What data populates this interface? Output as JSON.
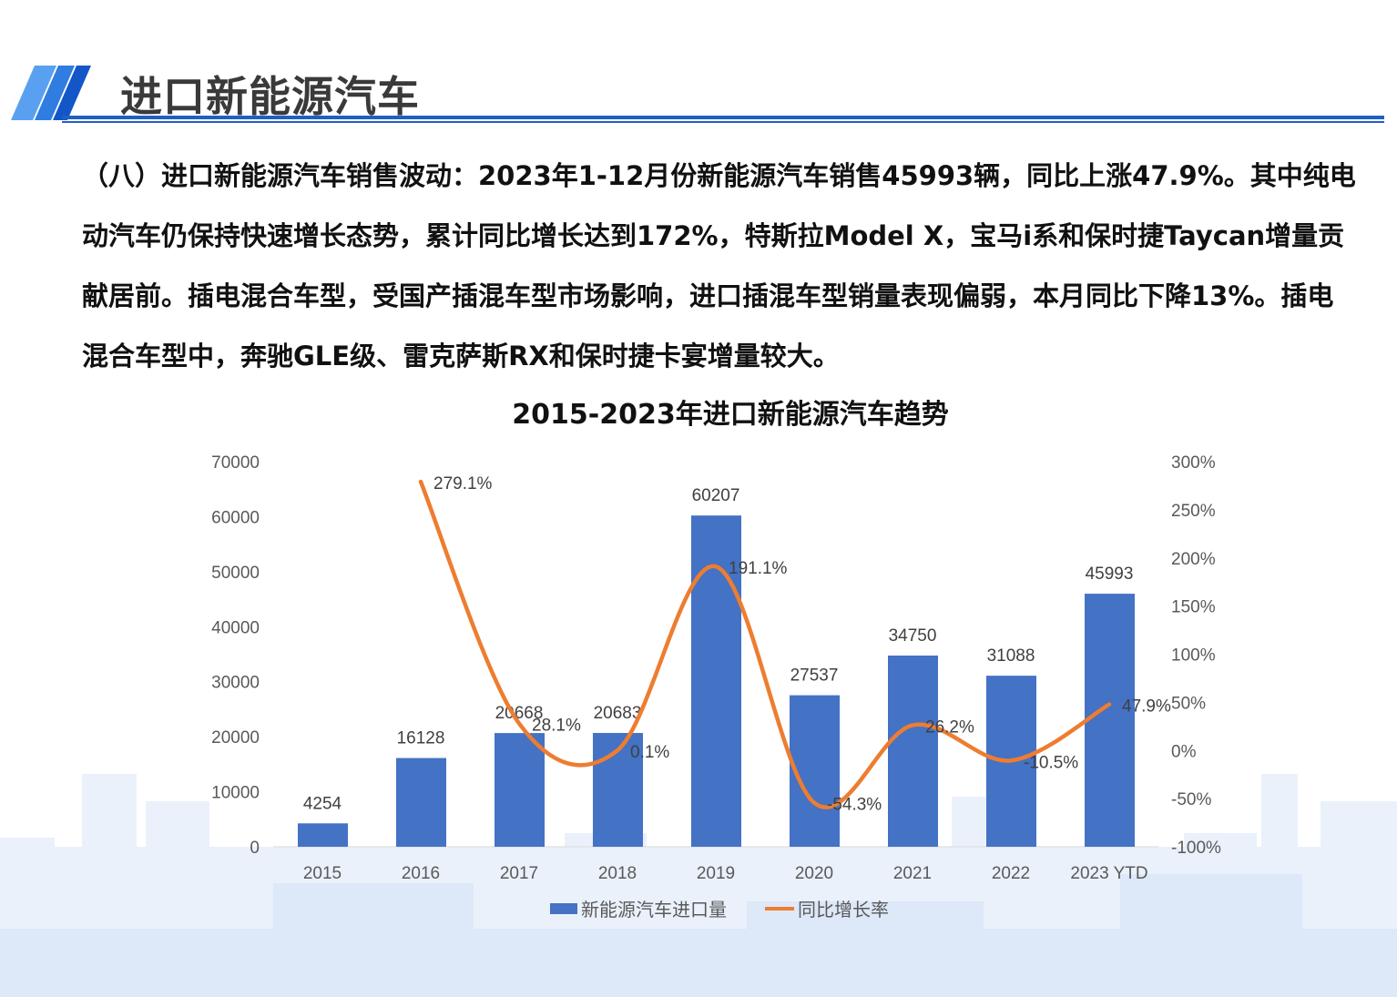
{
  "header": {
    "title": "进口新能源汽车",
    "accent_color": "#1f5fc4"
  },
  "paragraph": "（八）进口新能源汽车销售波动：2023年1-12月份新能源汽车销售45993辆，同比上涨47.9%。其中纯电动汽车仍保持快速增长态势，累计同比增长达到172%，特斯拉Model X，宝马i系和保时捷Taycan增量贡献居前。插电混合车型，受国产插混车型市场影响，进口插混车型销量表现偏弱，本月同比下降13%。插电混合车型中，奔驰GLE级、雷克萨斯RX和保时捷卡宴增量较大。",
  "chart_data": {
    "type": "bar+line",
    "title": "2015-2023年进口新能源汽车趋势",
    "categories": [
      "2015",
      "2016",
      "2017",
      "2018",
      "2019",
      "2020",
      "2021",
      "2022",
      "2023 YTD"
    ],
    "series": [
      {
        "name": "新能源汽车进口量",
        "type": "bar",
        "axis": "left",
        "color": "#4472c4",
        "values": [
          4254,
          16128,
          20668,
          20683,
          60207,
          27537,
          34750,
          31088,
          45993
        ],
        "labels": [
          "4254",
          "16128",
          "20668",
          "20683",
          "60207",
          "27537",
          "34750",
          "31088",
          "45993"
        ]
      },
      {
        "name": "同比增长率",
        "type": "line",
        "axis": "right",
        "color": "#ed7d31",
        "smooth": true,
        "values": [
          null,
          279.1,
          28.1,
          0.1,
          191.1,
          -54.3,
          26.2,
          -10.5,
          47.9
        ],
        "labels": [
          "",
          "279.1%",
          "28.1%",
          "0.1%",
          "191.1%",
          "-54.3%",
          "26.2%",
          "-10.5%",
          "47.9%"
        ]
      }
    ],
    "y_left": {
      "range": [
        0,
        70000
      ],
      "ticks": [
        "0",
        "10000",
        "20000",
        "30000",
        "40000",
        "50000",
        "60000",
        "70000"
      ]
    },
    "y_right": {
      "range": [
        -100,
        300
      ],
      "ticks": [
        "-100%",
        "-50%",
        "0%",
        "50%",
        "100%",
        "150%",
        "200%",
        "250%",
        "300%"
      ]
    },
    "legend_position": "bottom",
    "grid": false
  }
}
